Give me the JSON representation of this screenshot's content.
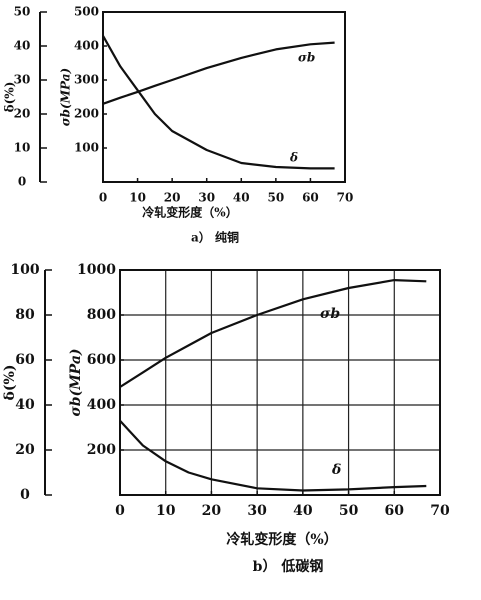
{
  "chart_data": [
    {
      "type": "line",
      "xlabel": "冷轧变形度（%）",
      "caption": "a）  纯铜",
      "ylabel": "δ(%)",
      "y2label": "σb(MPa)",
      "x": [
        0,
        5,
        10,
        15,
        20,
        30,
        40,
        50,
        60,
        67
      ],
      "xlim": [
        0,
        70
      ],
      "xticks": [
        0,
        10,
        20,
        30,
        40,
        50,
        60,
        70
      ],
      "ylim": [
        0,
        50
      ],
      "yticks": [
        0,
        10,
        20,
        30,
        40,
        50
      ],
      "y2lim": [
        0,
        500
      ],
      "y2ticks": [
        100,
        200,
        300,
        400,
        500
      ],
      "grid": false,
      "series": [
        {
          "name": "σb",
          "color": "#111111",
          "axis": "y2",
          "values": [
            230,
            248,
            265,
            283,
            300,
            335,
            365,
            390,
            405,
            410
          ]
        },
        {
          "name": "δ",
          "color": "#111111",
          "values": [
            43,
            34,
            27,
            20,
            15,
            9.4,
            5.6,
            4.4,
            4,
            4
          ]
        }
      ]
    },
    {
      "type": "line",
      "xlabel": "冷轧变形度（%）",
      "caption": "b）  低碳钢",
      "ylabel": "δ(%)",
      "y2label": "σb(MPa)",
      "x": [
        0,
        5,
        10,
        15,
        20,
        30,
        40,
        50,
        60,
        67
      ],
      "xlim": [
        0,
        70
      ],
      "xticks": [
        0,
        10,
        20,
        30,
        40,
        50,
        60,
        70
      ],
      "ylim": [
        0,
        100
      ],
      "yticks": [
        0,
        20,
        40,
        60,
        80,
        100
      ],
      "y2lim": [
        0,
        1000
      ],
      "y2ticks": [
        200,
        400,
        600,
        800,
        1000
      ],
      "grid": true,
      "series": [
        {
          "name": "σb",
          "color": "#111111",
          "axis": "y2",
          "values": [
            480,
            545,
            610,
            665,
            720,
            800,
            870,
            920,
            955,
            950
          ]
        },
        {
          "name": "δ",
          "color": "#111111",
          "values": [
            33,
            22,
            15,
            10,
            7,
            3,
            2,
            2.5,
            3.5,
            4
          ]
        }
      ]
    }
  ]
}
